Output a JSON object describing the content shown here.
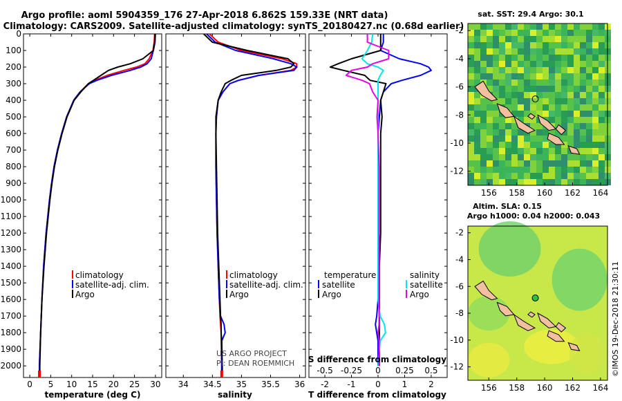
{
  "header": {
    "line1": "Argo profile: aoml 5904359_176 27-Apr-2018 6.862S 159.33E (NRT data)",
    "line2": "Climatology: CARS2009. Satellite-adjusted climatology: synTS_20180427.nc (0.68d earlier)"
  },
  "colors": {
    "climatology": "#ff0000",
    "satellite": "#0000ff",
    "argo": "#000000",
    "t_sat": "#0000ff",
    "s_sat": "#00e5e5",
    "s_argo": "#e600e6"
  },
  "chart_data": [
    {
      "type": "line",
      "name": "temperature",
      "xlabel": "temperature (deg C)",
      "ylabel": "",
      "xlim": [
        -1.5,
        31.5
      ],
      "ylim": [
        2070,
        0
      ],
      "xticks": [
        "0",
        "5",
        "10",
        "15",
        "20",
        "25",
        "30"
      ],
      "yticks": [
        "0",
        "100",
        "200",
        "300",
        "400",
        "500",
        "600",
        "700",
        "800",
        "900",
        "1000",
        "1100",
        "1200",
        "1300",
        "1400",
        "1500",
        "1600",
        "1700",
        "1800",
        "1900",
        "2000"
      ],
      "depth": [
        0,
        50,
        100,
        150,
        180,
        200,
        220,
        250,
        280,
        300,
        350,
        400,
        500,
        600,
        700,
        800,
        900,
        1000,
        1200,
        1400,
        1600,
        1800,
        2000,
        2050
      ],
      "series": [
        {
          "name": "climatology",
          "values": [
            29.8,
            29.7,
            29.4,
            28.5,
            27.5,
            25.5,
            22.5,
            18.5,
            15.5,
            14.0,
            12.0,
            10.5,
            8.8,
            7.6,
            6.6,
            5.8,
            5.2,
            4.7,
            3.9,
            3.3,
            2.9,
            2.6,
            2.3,
            2.3
          ]
        },
        {
          "name": "satellite-adj. clim.",
          "values": [
            30.0,
            29.9,
            29.5,
            29.0,
            28.0,
            26.5,
            24.0,
            19.5,
            16.0,
            14.2,
            12.0,
            10.5,
            8.8,
            7.6,
            6.6,
            5.8,
            5.2,
            4.7,
            3.9,
            3.3,
            2.9,
            2.6,
            2.3,
            2.3
          ]
        },
        {
          "name": "Argo",
          "values": [
            29.9,
            29.8,
            29.5,
            27.0,
            24.0,
            21.0,
            18.8,
            17.0,
            15.2,
            14.0,
            12.2,
            10.6,
            8.9,
            7.7,
            6.7,
            5.9,
            5.3,
            4.8,
            4.0,
            3.4,
            2.9,
            2.6,
            2.4,
            2.4
          ]
        }
      ],
      "legend": [
        "climatology",
        "satellite-adj. clim.",
        "Argo"
      ]
    },
    {
      "type": "line",
      "name": "salinity",
      "xlabel": "salinity",
      "xlim": [
        33.7,
        36.1
      ],
      "ylim": [
        2070,
        0
      ],
      "xticks": [
        "34",
        "34.5",
        "35",
        "35.5",
        "36"
      ],
      "depth": [
        0,
        50,
        100,
        150,
        180,
        200,
        220,
        250,
        280,
        300,
        350,
        400,
        500,
        600,
        800,
        1000,
        1200,
        1400,
        1600,
        1700,
        1750,
        1800,
        1850,
        2000,
        2050
      ],
      "series": [
        {
          "name": "climatology",
          "values": [
            34.45,
            34.6,
            35.0,
            35.7,
            35.95,
            35.95,
            35.85,
            35.3,
            34.95,
            34.8,
            34.68,
            34.6,
            34.57,
            34.56,
            34.56,
            34.57,
            34.58,
            34.6,
            34.62,
            34.63,
            34.64,
            34.65,
            34.65,
            34.66,
            34.66
          ]
        },
        {
          "name": "satellite-adj. clim.",
          "values": [
            34.4,
            34.55,
            34.9,
            35.55,
            35.85,
            35.95,
            35.9,
            35.3,
            34.95,
            34.8,
            34.68,
            34.6,
            34.57,
            34.56,
            34.56,
            34.57,
            34.58,
            34.6,
            34.62,
            34.64,
            34.7,
            34.72,
            34.66,
            34.66,
            34.66
          ]
        },
        {
          "name": "Argo",
          "values": [
            34.35,
            34.5,
            35.1,
            35.8,
            35.9,
            35.85,
            35.6,
            35.0,
            34.82,
            34.72,
            34.65,
            34.6,
            34.56,
            34.56,
            34.57,
            34.58,
            34.59,
            34.61,
            34.63,
            34.64,
            34.65,
            34.65,
            34.66,
            34.67,
            34.67
          ]
        }
      ],
      "legend": [
        "climatology",
        "satellite-adj. clim.",
        "Argo"
      ]
    },
    {
      "type": "line",
      "name": "difference",
      "xlabel": "T difference from climatology",
      "secondary_xlabel": "S difference from climatology",
      "xlim": [
        -2.6,
        2.6
      ],
      "ylim": [
        2070,
        0
      ],
      "xticks": [
        "-2",
        "-1",
        "0",
        "1",
        "2"
      ],
      "s_xticks": [
        "-0.5",
        "-0.25",
        "0",
        "0.25",
        "0.5"
      ],
      "depth": [
        0,
        50,
        100,
        150,
        180,
        200,
        220,
        250,
        280,
        300,
        350,
        400,
        500,
        600,
        800,
        1000,
        1200,
        1400,
        1600,
        1700,
        1750,
        1800,
        1850,
        2000
      ],
      "series": [
        {
          "name": "temperature satellite",
          "axis": "T",
          "values": [
            0.2,
            0.2,
            0.1,
            0.8,
            1.6,
            1.9,
            2.0,
            1.6,
            0.9,
            0.5,
            0.2,
            0.1,
            0.05,
            0.0,
            0.0,
            0.0,
            0.0,
            0.0,
            0.0,
            -0.05,
            -0.1,
            -0.05,
            0.0,
            0.0
          ]
        },
        {
          "name": "temperature Argo",
          "axis": "T",
          "values": [
            0.1,
            0.1,
            0.1,
            -1.0,
            -1.5,
            -1.8,
            -1.3,
            -0.5,
            -0.3,
            0.3,
            0.2,
            0.1,
            0.15,
            0.1,
            0.1,
            0.1,
            0.1,
            0.05,
            0.05,
            0.05,
            0.05,
            0.05,
            0.05,
            0.05
          ]
        },
        {
          "name": "salinity satellite",
          "axis": "S",
          "values": [
            -0.05,
            -0.06,
            -0.1,
            -0.15,
            -0.1,
            0.0,
            0.05,
            0.02,
            0.0,
            0.0,
            0.0,
            0.0,
            0.0,
            0.0,
            0.0,
            0.0,
            0.0,
            0.0,
            0.0,
            0.02,
            0.06,
            0.07,
            0.02,
            0.0
          ]
        },
        {
          "name": "salinity Argo",
          "axis": "S",
          "values": [
            -0.1,
            -0.1,
            0.1,
            0.1,
            -0.05,
            -0.1,
            -0.25,
            -0.3,
            -0.15,
            -0.08,
            -0.05,
            0.0,
            -0.01,
            0.0,
            0.01,
            0.01,
            0.01,
            0.01,
            0.01,
            0.01,
            0.01,
            0.0,
            0.01,
            0.01
          ]
        }
      ],
      "legend_t_header": "temperature",
      "legend_s_header": "salinity",
      "legend_t": [
        "satellite",
        "Argo"
      ],
      "legend_s": [
        "satellite",
        "Argo"
      ]
    },
    {
      "type": "heatmap",
      "name": "sst-map",
      "title": "sat. SST: 29.4 Argo: 30.1",
      "xlim": [
        154.5,
        164.5
      ],
      "ylim": [
        -13,
        -1.5
      ],
      "xticks": [
        "156",
        "158",
        "160",
        "162",
        "164"
      ],
      "yticks": [
        "-2",
        "-4",
        "-6",
        "-8",
        "-10",
        "-12"
      ],
      "float_position": {
        "lon": 159.33,
        "lat": -6.862
      }
    },
    {
      "type": "heatmap",
      "name": "sla-map",
      "title": "Altim. SLA: 0.15",
      "subtitle": "Argo h1000: 0.04 h2000: 0.043",
      "xlim": [
        154.5,
        164.5
      ],
      "ylim": [
        -13,
        -1.5
      ],
      "xticks": [
        "156",
        "158",
        "160",
        "162",
        "164"
      ],
      "yticks": [
        "-2",
        "-4",
        "-6",
        "-8",
        "-10",
        "-12"
      ],
      "float_position": {
        "lon": 159.33,
        "lat": -6.862
      }
    }
  ],
  "annotations": {
    "project": "US ARGO PROJECT",
    "pi": "PI: DEAN ROEMMICH",
    "credit": "©IMOS 19-Dec-2018 21:30:11"
  }
}
